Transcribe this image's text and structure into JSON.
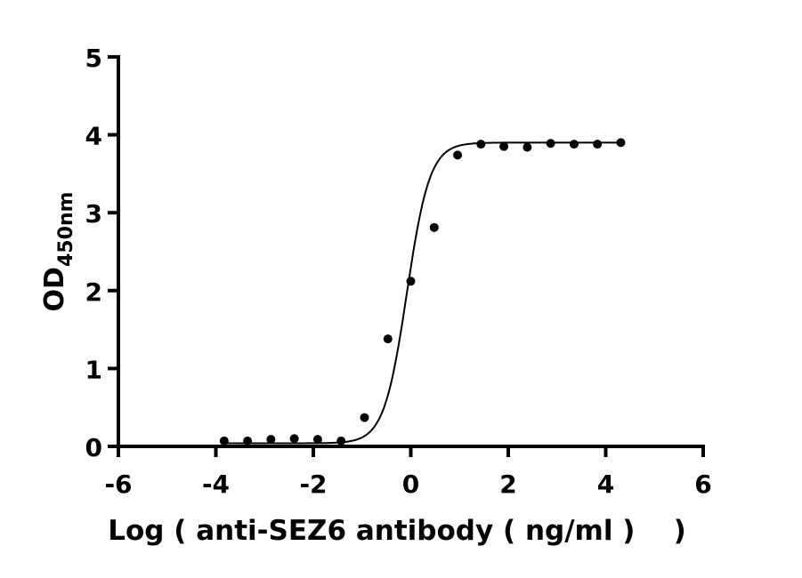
{
  "chart_data": {
    "type": "scatter",
    "title": "",
    "xlabel": "Log ( anti-SEZ6 antibody ( ng/ml )    )",
    "ylabel_main": "OD",
    "ylabel_sub": "450nm",
    "xlim": [
      -6,
      6
    ],
    "ylim": [
      0,
      5
    ],
    "xticks": [
      -6,
      -4,
      -2,
      0,
      2,
      4,
      6
    ],
    "yticks": [
      0,
      1,
      2,
      3,
      4,
      5
    ],
    "grid": false,
    "points": [
      {
        "x": -3.83,
        "y": 0.07
      },
      {
        "x": -3.35,
        "y": 0.07
      },
      {
        "x": -2.87,
        "y": 0.09
      },
      {
        "x": -2.39,
        "y": 0.1
      },
      {
        "x": -1.91,
        "y": 0.09
      },
      {
        "x": -1.43,
        "y": 0.07
      },
      {
        "x": -0.95,
        "y": 0.37
      },
      {
        "x": -0.47,
        "y": 1.38
      },
      {
        "x": 0.0,
        "y": 2.12
      },
      {
        "x": 0.48,
        "y": 2.81
      },
      {
        "x": 0.96,
        "y": 3.74
      },
      {
        "x": 1.44,
        "y": 3.88
      },
      {
        "x": 1.91,
        "y": 3.85
      },
      {
        "x": 2.39,
        "y": 3.84
      },
      {
        "x": 2.87,
        "y": 3.89
      },
      {
        "x": 3.35,
        "y": 3.88
      },
      {
        "x": 3.83,
        "y": 3.88
      },
      {
        "x": 4.31,
        "y": 3.9
      }
    ],
    "fit_curve": {
      "type": "four-parameter logistic",
      "bottom": 0.04,
      "top": 3.9,
      "logEC50": -0.08,
      "hill": 1.85,
      "x_range": [
        -3.83,
        4.31
      ]
    },
    "colors": {
      "points": "#000000",
      "curve": "#000000",
      "axes": "#000000"
    }
  }
}
